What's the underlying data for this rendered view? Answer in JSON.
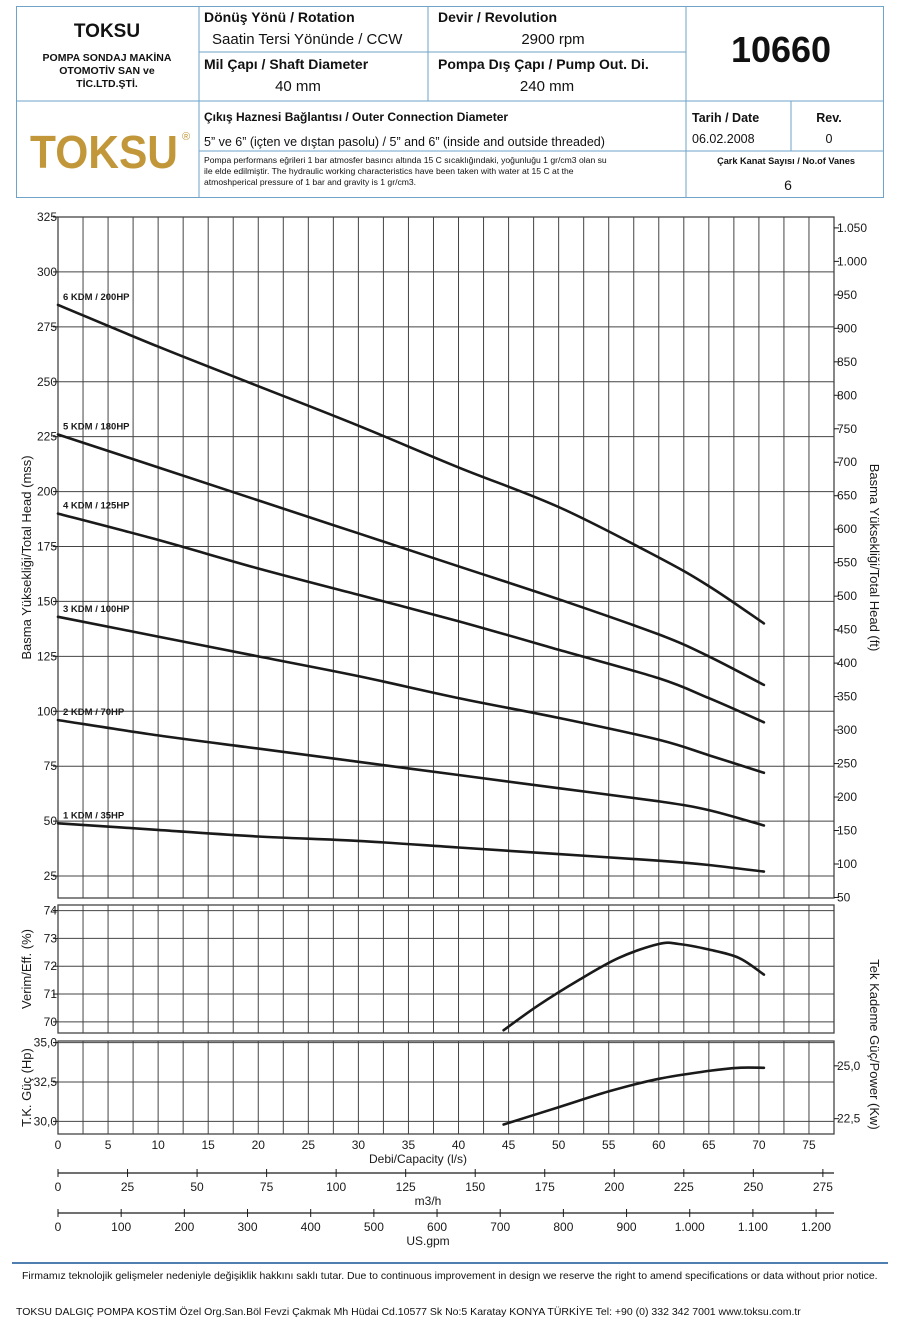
{
  "header": {
    "company_name": "TOKSU",
    "company_sub1": "POMPA SONDAJ MAKİNA",
    "company_sub2": "OTOMOTİV SAN ve",
    "company_sub3": "TİC.LTD.ŞTİ.",
    "logo_text": "TOKSU",
    "logo_mark": "®",
    "rotation_label": "Dönüş Yönü / Rotation",
    "rotation_value": "Saatin Tersi Yönünde / CCW",
    "revolution_label": "Devir / Revolution",
    "revolution_value": "2900 rpm",
    "shaft_label": "Mil Çapı / Shaft Diameter",
    "shaft_value": "40 mm",
    "pump_od_label": "Pompa Dış Çapı / Pump Out. Di.",
    "pump_od_value": "240 mm",
    "model_number": "10660",
    "connection_label": "Çıkış Haznesi Bağlantısı / Outer Connection Diameter",
    "connection_value": "5” ve 6” (içten ve dıştan pasolu) / 5” and 6” (inside and outside threaded)",
    "note_line1": "Pompa performans eğrileri 1 bar atmosfer basıncı altında 15 C sıcaklığındaki, yoğunluğu 1 gr/cm3 olan su",
    "note_line2": "ile elde edilmiştir. The hydraulic working characteristics have been taken with water at 15 C at the",
    "note_line3": "atmoshperical pressure of 1 bar and gravity is 1 gr/cm3.",
    "date_label": "Tarih / Date",
    "date_value": "06.02.2008",
    "rev_label": "Rev.",
    "rev_value": "0",
    "vanes_label": "Çark Kanat Sayısı / No.of Vanes",
    "vanes_value": "6"
  },
  "chart_data": {
    "type": "line",
    "line_color": "#1a1a1a",
    "grid_color": "#444444",
    "x": {
      "label": "Debi/Capacity (l/s)",
      "range": [
        0,
        77.5
      ],
      "ticks": [
        0,
        5,
        10,
        15,
        20,
        25,
        30,
        35,
        40,
        45,
        50,
        55,
        60,
        65,
        70,
        75
      ],
      "tick_labels": [
        "0",
        "5",
        "10",
        "15",
        "20",
        "25",
        "30",
        "35",
        "40",
        "45",
        "50",
        "55",
        "60",
        "65",
        "70",
        "75"
      ],
      "grid_step": 2.5
    },
    "x_secondary": [
      {
        "label": "m3/h",
        "ticks": [
          0,
          25,
          50,
          75,
          100,
          125,
          150,
          175,
          200,
          225,
          250,
          275
        ],
        "tick_labels": [
          "0",
          "25",
          "50",
          "75",
          "100",
          "125",
          "150",
          "175",
          "200",
          "225",
          "250",
          "275"
        ],
        "per_ls": 3.6
      },
      {
        "label": "US.gpm",
        "ticks": [
          0,
          100,
          200,
          300,
          400,
          500,
          600,
          700,
          800,
          900,
          1000,
          1100,
          1200
        ],
        "tick_labels": [
          "0",
          "100",
          "200",
          "300",
          "400",
          "500",
          "600",
          "700",
          "800",
          "900",
          "1.000",
          "1.100",
          "1.200"
        ],
        "per_ls": 15.85
      }
    ],
    "head": {
      "ylabel": "Basma Yüksekliği/Total Head (mss)",
      "ylabel_right": "Basma Yüksekliği/Total Head (ft)",
      "ylim": [
        15,
        325
      ],
      "ticks": [
        25,
        50,
        75,
        100,
        125,
        150,
        175,
        200,
        225,
        250,
        275,
        300,
        325
      ],
      "tick_labels": [
        "25",
        "50",
        "75",
        "100",
        "125",
        "150",
        "175",
        "200",
        "225",
        "250",
        "275",
        "300",
        "325"
      ],
      "ticks_right": [
        50,
        100,
        150,
        200,
        250,
        300,
        350,
        400,
        450,
        500,
        550,
        600,
        650,
        700,
        750,
        800,
        850,
        900,
        950,
        1000,
        1050
      ],
      "ticks_right_labels": [
        "50",
        "100",
        "150",
        "200",
        "250",
        "300",
        "350",
        "400",
        "450",
        "500",
        "550",
        "600",
        "650",
        "700",
        "750",
        "800",
        "850",
        "900",
        "950",
        "1.000",
        "1.050"
      ],
      "series": [
        {
          "name": "6 KDM / 200HP",
          "x": [
            0,
            10,
            20,
            30,
            40,
            50,
            60,
            65,
            70.5
          ],
          "y": [
            285,
            266,
            248,
            230,
            211,
            193,
            170,
            157,
            140
          ]
        },
        {
          "name": "5 KDM / 180HP",
          "x": [
            0,
            10,
            20,
            30,
            40,
            50,
            60,
            65,
            70.5
          ],
          "y": [
            226,
            211,
            196,
            181,
            166,
            151,
            135,
            125,
            112
          ]
        },
        {
          "name": "4 KDM / 125HP",
          "x": [
            0,
            10,
            20,
            30,
            40,
            50,
            60,
            65,
            70.5
          ],
          "y": [
            190,
            178,
            165,
            153,
            141,
            128,
            115,
            106,
            95
          ]
        },
        {
          "name": "3 KDM / 100HP",
          "x": [
            0,
            10,
            20,
            30,
            40,
            50,
            60,
            65,
            70.5
          ],
          "y": [
            143,
            134,
            125,
            116,
            106,
            97,
            87,
            80,
            72
          ]
        },
        {
          "name": "2 KDM / 70HP",
          "x": [
            0,
            10,
            20,
            30,
            40,
            50,
            60,
            65,
            70.5
          ],
          "y": [
            96,
            89,
            83,
            77,
            71,
            65,
            59,
            55,
            48
          ]
        },
        {
          "name": "1 KDM / 35HP",
          "x": [
            0,
            10,
            20,
            30,
            40,
            50,
            60,
            65,
            70.5
          ],
          "y": [
            49,
            46,
            43,
            41,
            38,
            35,
            32,
            30,
            27
          ]
        }
      ]
    },
    "efficiency": {
      "ylabel": "Verim/Eff. (%)",
      "ylim": [
        69.6,
        74.2
      ],
      "ticks": [
        70,
        71,
        72,
        73,
        74
      ],
      "tick_labels": [
        "70",
        "71",
        "72",
        "73",
        "74"
      ],
      "series": [
        {
          "name": "",
          "x": [
            44.5,
            48,
            52,
            56,
            60,
            62,
            65,
            68,
            70.5
          ],
          "y": [
            69.7,
            70.6,
            71.5,
            72.3,
            72.8,
            72.8,
            72.6,
            72.3,
            71.7
          ]
        }
      ]
    },
    "power": {
      "ylabel": "T.K. Güç (Hp)",
      "ylabel_right": "Tek Kademe Güç/Power (Kw)",
      "ylim": [
        29.2,
        35.1
      ],
      "ticks": [
        30.0,
        32.5,
        35.0
      ],
      "tick_labels": [
        "30,0",
        "32,5",
        "35,0"
      ],
      "ticks_right": [
        22.5,
        25.0
      ],
      "ticks_right_labels": [
        "22,5",
        "25,0"
      ],
      "kw_per_hp": 0.7457,
      "series": [
        {
          "name": "",
          "x": [
            44.5,
            50,
            55,
            60,
            65,
            68,
            70.5
          ],
          "y": [
            29.8,
            30.9,
            31.9,
            32.7,
            33.2,
            33.4,
            33.4
          ]
        }
      ]
    }
  },
  "footer": {
    "notice": "Firmamız teknolojik gelişmeler nedeniyle değişiklik hakkını saklı tutar. Due to continuous improvement in design we reserve the right to amend specifications or data without prior notice.",
    "address": "TOKSU DALGIÇ POMPA  KOSTİM Özel Org.San.Böl Fevzi Çakmak Mh Hüdai Cd.10577 Sk No:5 Karatay KONYA TÜRKİYE Tel: +90 (0) 332 342 7001 www.toksu.com.tr"
  }
}
